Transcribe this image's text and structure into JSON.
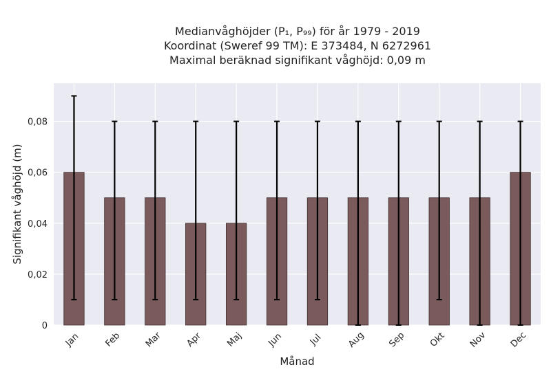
{
  "chart_data": {
    "type": "bar",
    "title_lines": [
      "Medianvåghöjder (P₁, P₉₉) för år 1979 - 2019",
      "Koordinat (Sweref 99 TM): E 373484, N 6272961",
      "Maximal beräknad signifikant våghöjd: 0,09 m"
    ],
    "xlabel": "Månad",
    "ylabel": "Signifikant våghöjd (m)",
    "categories": [
      "Jan",
      "Feb",
      "Mar",
      "Apr",
      "Maj",
      "Jun",
      "Jul",
      "Aug",
      "Sep",
      "Okt",
      "Nov",
      "Dec"
    ],
    "values": [
      0.06,
      0.05,
      0.05,
      0.04,
      0.04,
      0.05,
      0.05,
      0.05,
      0.05,
      0.05,
      0.05,
      0.06
    ],
    "err_low": [
      0.01,
      0.01,
      0.01,
      0.01,
      0.01,
      0.01,
      0.01,
      0.0,
      0.0,
      0.01,
      0.0,
      0.0
    ],
    "err_high": [
      0.09,
      0.08,
      0.08,
      0.08,
      0.08,
      0.08,
      0.08,
      0.08,
      0.08,
      0.08,
      0.08,
      0.08
    ],
    "yticks": [
      0,
      0.02,
      0.04,
      0.06,
      0.08
    ],
    "ytick_labels": [
      "0",
      "0,02",
      "0,04",
      "0,06",
      "0,08"
    ],
    "ylim": [
      0,
      0.095
    ],
    "grid": true,
    "bar_color": "#7a5a5a",
    "bar_edge_color": "#3e2e2e",
    "plot_bg": "#eaeaf2",
    "error_color": "#000000"
  }
}
